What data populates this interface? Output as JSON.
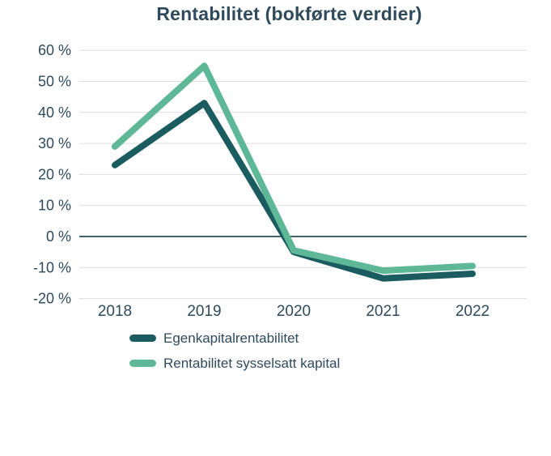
{
  "title": "Rentabilitet (bokførte verdier)",
  "colors": {
    "text": "#2e4a5b",
    "grid": "#d9dde0",
    "zero_line": "#44616e",
    "series_dark": "#1a5c5f",
    "series_light": "#5eb796",
    "background": "#ffffff"
  },
  "chart_data": {
    "type": "line",
    "title": "Rentabilitet (bokførte verdier)",
    "categories": [
      "2018",
      "2019",
      "2020",
      "2021",
      "2022"
    ],
    "series": [
      {
        "name": "Egenkapitalrentabilitet",
        "color": "#1a5c5f",
        "values": [
          23,
          43,
          -5,
          -13.5,
          -12
        ]
      },
      {
        "name": "Rentabilitet sysselsatt kapital",
        "color": "#5eb796",
        "values": [
          29,
          55,
          -4.5,
          -11,
          -9.5
        ]
      }
    ],
    "xlabel": "",
    "ylabel": "",
    "ylim": [
      -20,
      60
    ],
    "y_ticks": [
      {
        "value": 60,
        "label": "60 %"
      },
      {
        "value": 50,
        "label": "50 %"
      },
      {
        "value": 40,
        "label": "40 %"
      },
      {
        "value": 30,
        "label": "30 %"
      },
      {
        "value": 20,
        "label": "20 %"
      },
      {
        "value": 10,
        "label": "10 %"
      },
      {
        "value": 0,
        "label": "0 %"
      },
      {
        "value": -10,
        "label": "-10 %"
      },
      {
        "value": -20,
        "label": "-20 %"
      }
    ],
    "grid": true,
    "zero_line_emphasized": true,
    "legend_position": "bottom-left",
    "line_width": 8,
    "line_cap": "round"
  }
}
